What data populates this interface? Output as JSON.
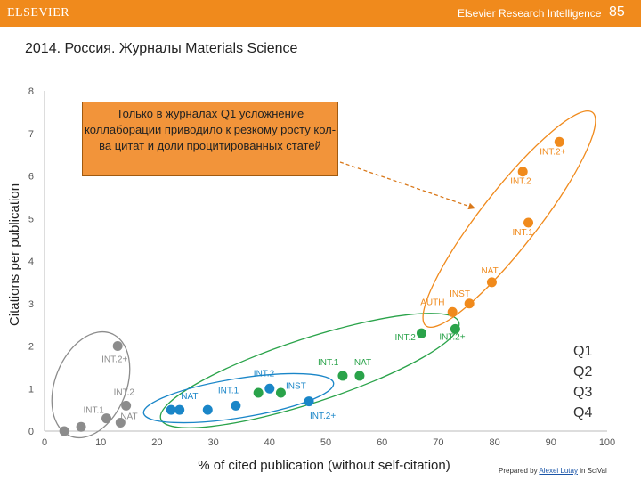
{
  "header": {
    "brand": "ELSEVIER",
    "right_label": "Elsevier Research Intelligence",
    "page_number": "85"
  },
  "slide_title": "2014. Россия. Журналы Materials Science",
  "callout": {
    "text": "Только в журналах Q1 усложнение коллаборации приводило к резкому росту кол-ва цитат и доли процитированных статей"
  },
  "quartiles": [
    "Q1",
    "Q2",
    "Q3",
    "Q4"
  ],
  "footer": {
    "prefix": "Prepared by ",
    "author": "Alexei Lutay",
    "suffix": " in SciVal"
  },
  "colors": {
    "q1": "#f08a1c",
    "q2": "#2aa34a",
    "q3": "#1a86c8",
    "q4": "#8c8c8c",
    "header": "#f08a1c"
  },
  "chart_data": {
    "type": "scatter",
    "xlabel": "% of cited publication (without self-citation)",
    "ylabel": "Citations per publication",
    "xlim": [
      0,
      100
    ],
    "ylim": [
      0,
      8
    ],
    "xticks": [
      "0",
      "10",
      "20",
      "30",
      "40",
      "50",
      "60",
      "70",
      "80",
      "90",
      "100"
    ],
    "yticks": [
      "0",
      "1",
      "2",
      "3",
      "4",
      "5",
      "6",
      "7",
      "8"
    ],
    "grid": false,
    "series": [
      {
        "name": "Q1",
        "color": "#f08a1c",
        "points": [
          {
            "x": 72.5,
            "y": 2.8,
            "label": "AUTH"
          },
          {
            "x": 75.5,
            "y": 3.0,
            "label": "INST"
          },
          {
            "x": 79.5,
            "y": 3.5,
            "label": "NAT"
          },
          {
            "x": 86.0,
            "y": 4.9,
            "label": "INT.1"
          },
          {
            "x": 85.0,
            "y": 6.1,
            "label": "INT.2"
          },
          {
            "x": 91.5,
            "y": 6.8,
            "label": "INT.2+"
          }
        ]
      },
      {
        "name": "Q2",
        "color": "#2aa34a",
        "points": [
          {
            "x": 38.0,
            "y": 0.9,
            "label": ""
          },
          {
            "x": 42.0,
            "y": 0.9,
            "label": ""
          },
          {
            "x": 53.0,
            "y": 1.3,
            "label": "INT.1"
          },
          {
            "x": 56.0,
            "y": 1.3,
            "label": "NAT"
          },
          {
            "x": 67.0,
            "y": 2.3,
            "label": "INT.2"
          },
          {
            "x": 73.0,
            "y": 2.4,
            "label": "INT.2+"
          }
        ]
      },
      {
        "name": "Q3",
        "color": "#1a86c8",
        "points": [
          {
            "x": 22.5,
            "y": 0.5,
            "label": ""
          },
          {
            "x": 24.0,
            "y": 0.5,
            "label": ""
          },
          {
            "x": 29.0,
            "y": 0.5,
            "label": "NAT"
          },
          {
            "x": 34.0,
            "y": 0.6,
            "label": "INT.1"
          },
          {
            "x": 40.0,
            "y": 1.0,
            "label": "INT.2"
          },
          {
            "x": 47.0,
            "y": 0.7,
            "label": "INST"
          }
        ]
      },
      {
        "name": "Q4",
        "color": "#8c8c8c",
        "points": [
          {
            "x": 3.5,
            "y": 0.0,
            "label": ""
          },
          {
            "x": 6.5,
            "y": 0.1,
            "label": ""
          },
          {
            "x": 11.0,
            "y": 0.3,
            "label": "INT.1"
          },
          {
            "x": 13.5,
            "y": 0.2,
            "label": "NAT"
          },
          {
            "x": 14.5,
            "y": 0.6,
            "label": "INT.2"
          },
          {
            "x": 13.0,
            "y": 2.0,
            "label": "INT.2+"
          }
        ]
      }
    ],
    "annotations": [
      {
        "text": "INT.2+",
        "series": "Q3"
      }
    ]
  }
}
